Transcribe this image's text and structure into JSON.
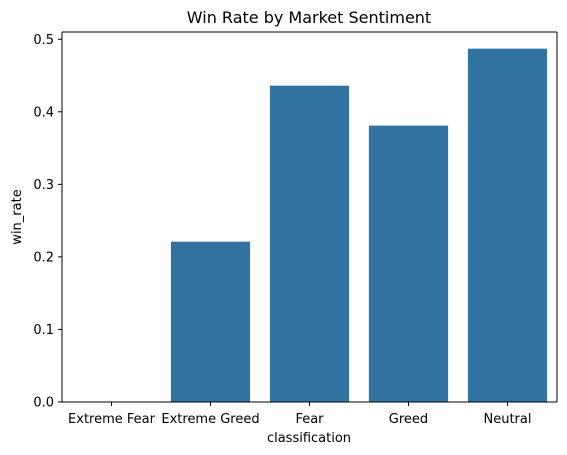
{
  "chart_data": {
    "type": "bar",
    "title": "Win Rate by Market Sentiment",
    "xlabel": "classification",
    "ylabel": "win_rate",
    "categories": [
      "Extreme Fear",
      "Extreme Greed",
      "Fear",
      "Greed",
      "Neutral"
    ],
    "values": [
      0.0,
      0.221,
      0.436,
      0.381,
      0.487
    ],
    "ylim": [
      0,
      0.51
    ],
    "yticks": [
      0.0,
      0.1,
      0.2,
      0.3,
      0.4,
      0.5
    ],
    "ytick_labels": [
      "0.0",
      "0.1",
      "0.2",
      "0.3",
      "0.4",
      "0.5"
    ],
    "bar_color": "#3274a1",
    "grid": false,
    "legend": "none"
  }
}
